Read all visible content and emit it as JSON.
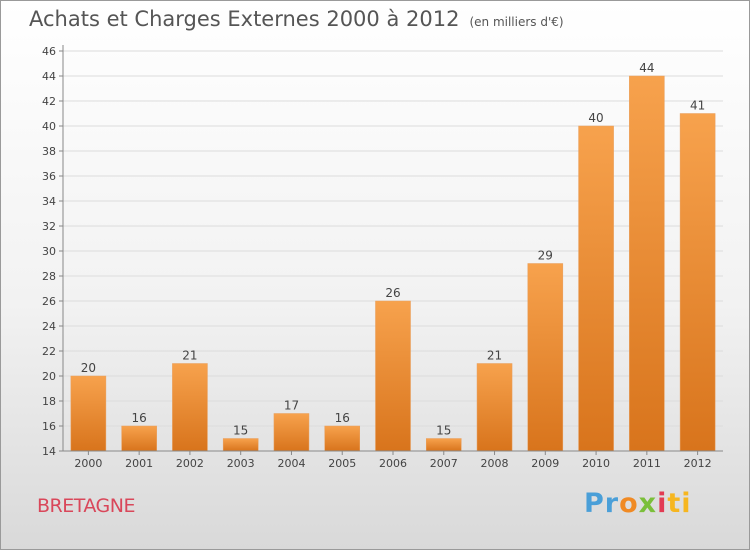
{
  "header": {
    "title": "Achats et Charges Externes 2000 à 2012",
    "subtitle": "(en milliers d'€)"
  },
  "footer": {
    "region": "BRETAGNE",
    "logo_parts": [
      "Pr",
      "o",
      "x",
      "i",
      "ti"
    ]
  },
  "colors": {
    "bar_top": "#f7a24d",
    "bar_bottom": "#d8741c",
    "accent_region": "#d9475a"
  },
  "chart_data": {
    "type": "bar",
    "title": "Achats et Charges Externes 2000 à 2012",
    "subtitle": "(en milliers d'€)",
    "categories": [
      "2000",
      "2001",
      "2002",
      "2003",
      "2004",
      "2005",
      "2006",
      "2007",
      "2008",
      "2009",
      "2010",
      "2011",
      "2012"
    ],
    "values": [
      20,
      16,
      21,
      15,
      17,
      16,
      26,
      15,
      21,
      29,
      40,
      44,
      41
    ],
    "ylim": [
      14,
      46
    ],
    "yticks": [
      14,
      16,
      18,
      20,
      22,
      24,
      26,
      28,
      30,
      32,
      34,
      36,
      38,
      40,
      42,
      44,
      46
    ],
    "grid": true,
    "data_labels": true
  }
}
